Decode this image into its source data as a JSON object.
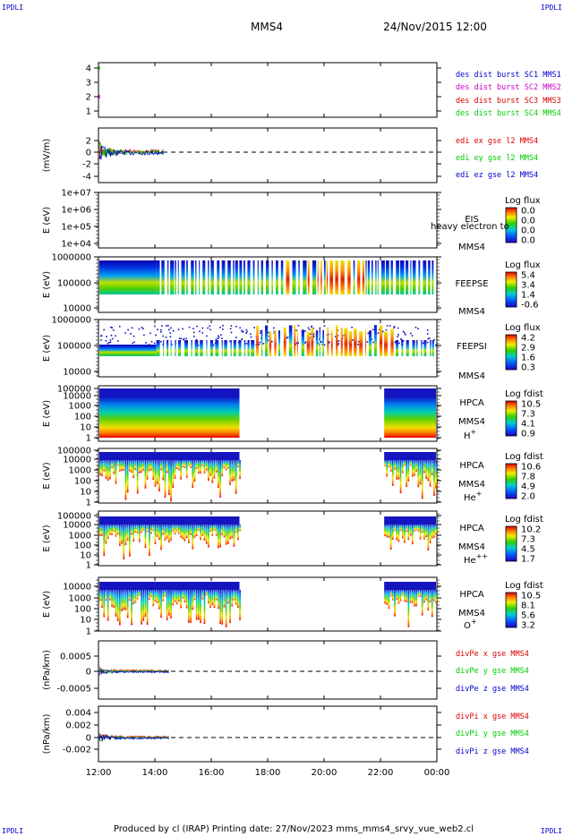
{
  "header": {
    "corner_left": "IPDLI",
    "corner_right": "IPDLI",
    "spacecraft": "MMS4",
    "date": "24/Nov/2015 12:00"
  },
  "footer": {
    "text": "Produced by cl (IRAP)   Printing date: 27/Nov/2023   mms_mms4_srvy_vue_web2.cl",
    "corner_left": "IPDLI",
    "corner_right": "IPDLI"
  },
  "colors": {
    "red": "#dd0000",
    "green": "#00cc00",
    "blue": "#0000cc",
    "magenta": "#cc00cc"
  },
  "xaxis": {
    "ticks": [
      "12:00",
      "14:00",
      "16:00",
      "18:00",
      "20:00",
      "22:00",
      "00:00"
    ],
    "range_hours": [
      12,
      24
    ]
  },
  "chart_data": [
    {
      "type": "line",
      "ylim": [
        0.5,
        4.5
      ],
      "yticks": [
        "4",
        "3",
        "2",
        "1"
      ],
      "series": [
        {
          "name": "des dist burst SC1 MMS1",
          "color": "#0000cc",
          "values": []
        },
        {
          "name": "des dist burst SC2 MMS2",
          "color": "#cc00cc",
          "values": []
        },
        {
          "name": "des dist burst SC3 MMS3",
          "color": "#dd0000",
          "values": []
        },
        {
          "name": "des dist burst SC4 MMS4",
          "color": "#00cc00",
          "values": []
        }
      ]
    },
    {
      "type": "line",
      "ylabel": "(mV/m)",
      "ylim": [
        -4,
        3.2
      ],
      "yticks": [
        "2",
        "0",
        "-2",
        "-4"
      ],
      "data_end_hour": 14.3,
      "series": [
        {
          "name": "edi ex gse l2 MMS4",
          "color": "#dd0000"
        },
        {
          "name": "edi ey gse l2 MMS4",
          "color": "#00cc00"
        },
        {
          "name": "edi ez gse l2 MMS4",
          "color": "#0000cc"
        }
      ]
    },
    {
      "type": "heatmap",
      "ylabel": "E (eV)",
      "yticks": [
        "1e+07",
        "1e+06",
        "1e+05",
        "1e+04"
      ],
      "instrument": "EIS",
      "spacecraft": "MMS4",
      "overlay": "heavy electron to",
      "colorbar": {
        "title": "Log flux",
        "ticks": [
          "0.0",
          "0.0",
          "0.0",
          "0.0"
        ]
      }
    },
    {
      "type": "heatmap",
      "ylabel": "E (eV)",
      "yticks": [
        "1000000",
        "100000",
        "10000"
      ],
      "instrument": "FEEPSE",
      "spacecraft": "MMS4",
      "colorbar": {
        "title": "Log flux",
        "ticks": [
          "5.4",
          "3.4",
          "1.4",
          "-0.6"
        ]
      }
    },
    {
      "type": "heatmap",
      "ylabel": "E (eV)",
      "yticks": [
        "1000000",
        "100000",
        "10000"
      ],
      "instrument": "FEEPSI",
      "spacecraft": "MMS4",
      "colorbar": {
        "title": "Log flux",
        "ticks": [
          "4.2",
          "2.9",
          "1.6",
          "0.3"
        ]
      }
    },
    {
      "type": "heatmap",
      "ylabel": "E (eV)",
      "yticks": [
        "100000",
        "10000",
        "1000",
        "100",
        "10",
        "1"
      ],
      "instrument": "HPCA",
      "spacecraft": "MMS4",
      "species": "H",
      "charge": "+",
      "colorbar": {
        "title": "Log fdist",
        "ticks": [
          "10.5",
          "7.3",
          "4.1",
          "0.9"
        ]
      },
      "data_intervals_hours": [
        [
          12,
          17
        ],
        [
          22.1,
          24
        ]
      ]
    },
    {
      "type": "heatmap",
      "ylabel": "E (eV)",
      "yticks": [
        "100000",
        "10000",
        "1000",
        "100",
        "10",
        "1"
      ],
      "instrument": "HPCA",
      "spacecraft": "MMS4",
      "species": "He",
      "charge": "+",
      "colorbar": {
        "title": "Log fdist",
        "ticks": [
          "10.6",
          "7.8",
          "4.9",
          "2.0"
        ]
      },
      "data_intervals_hours": [
        [
          12,
          17
        ],
        [
          22.1,
          24
        ]
      ]
    },
    {
      "type": "heatmap",
      "ylabel": "E (eV)",
      "yticks": [
        "100000",
        "10000",
        "1000",
        "100",
        "10",
        "1"
      ],
      "instrument": "HPCA",
      "spacecraft": "MMS4",
      "species": "He",
      "charge": "++",
      "colorbar": {
        "title": "Log fdist",
        "ticks": [
          "10.2",
          "7.3",
          "4.5",
          "1.7"
        ]
      },
      "data_intervals_hours": [
        [
          12,
          17
        ],
        [
          22.1,
          24
        ]
      ]
    },
    {
      "type": "heatmap",
      "ylabel": "E (eV)",
      "yticks": [
        "10000",
        "1000",
        "100",
        "10",
        "1"
      ],
      "instrument": "HPCA",
      "spacecraft": "MMS4",
      "species": "O",
      "charge": "+",
      "colorbar": {
        "title": "Log fdist",
        "ticks": [
          "10.5",
          "8.1",
          "5.6",
          "3.2"
        ]
      },
      "data_intervals_hours": [
        [
          12,
          17
        ],
        [
          22.1,
          24
        ]
      ]
    },
    {
      "type": "line",
      "ylabel": "(nPa/km)",
      "yticks": [
        "0.0005",
        "0",
        "-0.0005"
      ],
      "ylim": [
        -0.0007,
        0.0009
      ],
      "data_end_hour": 14.5,
      "series": [
        {
          "name": "divPe x gse MMS4",
          "color": "#dd0000"
        },
        {
          "name": "divPe y gse MMS4",
          "color": "#00cc00"
        },
        {
          "name": "divPe z gse MMS4",
          "color": "#0000cc"
        }
      ]
    },
    {
      "type": "line",
      "ylabel": "(nPa/km)",
      "yticks": [
        "0.004",
        "0.002",
        "0",
        "-0.002"
      ],
      "ylim": [
        -0.003,
        0.0048
      ],
      "data_end_hour": 14.5,
      "series": [
        {
          "name": "divPi x gse MMS4",
          "color": "#dd0000"
        },
        {
          "name": "divPi y gse MMS4",
          "color": "#00cc00"
        },
        {
          "name": "divPi z gse MMS4",
          "color": "#0000cc"
        }
      ]
    }
  ]
}
